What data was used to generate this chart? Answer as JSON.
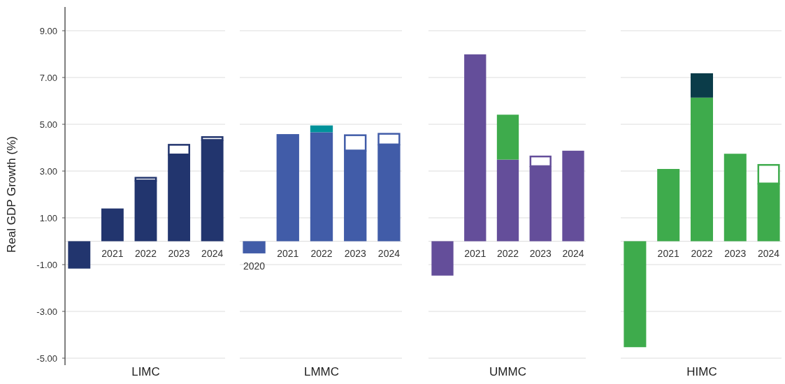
{
  "chart_data": [
    {
      "type": "bar",
      "stacked": true,
      "xlabel": "LIMC",
      "ylabel": "Real GDP Growth (%)",
      "categories": [
        null,
        "2021",
        "2022",
        "2023",
        "2024"
      ],
      "ylim": [
        -5,
        9
      ],
      "yticks": [
        {
          "value": 9,
          "label": "9.00"
        },
        {
          "value": 7,
          "label": "7.00"
        },
        {
          "value": 5,
          "label": "5.00"
        },
        {
          "value": 3,
          "label": "3.00"
        },
        {
          "value": 1,
          "label": "1.00"
        },
        {
          "value": -1,
          "label": "-1.00"
        },
        {
          "value": -3,
          "label": "-3.00"
        },
        {
          "value": -5,
          "label": "-5.00"
        }
      ],
      "grid": "y",
      "series": [
        {
          "color": "#22356e",
          "values": [
            -1.17,
            1.4,
            2.6,
            3.71,
            4.33
          ]
        },
        {
          "color": "#ffffff",
          "values": [
            null,
            null,
            0.15,
            0.45,
            0.16
          ]
        }
      ]
    },
    {
      "type": "bar",
      "stacked": true,
      "xlabel": "LMMC",
      "categories": [
        "2020",
        "2021",
        "2022",
        "2023",
        "2024"
      ],
      "ylim": [
        -5,
        9
      ],
      "yticks": [
        9,
        7,
        5,
        3,
        1,
        -1,
        -3,
        -5
      ],
      "grid": "y",
      "tick_labels": "x",
      "series": [
        {
          "color": "#415ca8",
          "values": [
            -0.52,
            4.58,
            4.66,
            3.88,
            4.14
          ]
        },
        {
          "color": "#00929a",
          "values": [
            null,
            null,
            0.29,
            null,
            null
          ]
        },
        {
          "color": "#ffffff",
          "values": [
            null,
            null,
            null,
            0.69,
            0.49
          ]
        }
      ]
    },
    {
      "type": "bar",
      "stacked": true,
      "xlabel": "UMMC",
      "categories": [
        null,
        "2021",
        "2022",
        "2023",
        "2024"
      ],
      "ylim": [
        -5,
        9
      ],
      "yticks": [
        9,
        7,
        5,
        3,
        1,
        -1,
        -3,
        -5
      ],
      "grid": "y",
      "tick_labels": "x",
      "series": [
        {
          "color": "#644e9a",
          "values": [
            -1.47,
            7.99,
            3.49,
            3.21,
            3.87
          ]
        },
        {
          "color": "#3eab4c",
          "values": [
            null,
            null,
            1.92,
            null,
            null
          ]
        },
        {
          "color": "#ffffff",
          "values": [
            null,
            null,
            null,
            0.45,
            null
          ]
        }
      ]
    },
    {
      "type": "bar",
      "stacked": true,
      "xlabel": "HIMC",
      "categories": [
        null,
        "2021",
        "2022",
        "2023",
        "2024"
      ],
      "ylim": [
        -5,
        9
      ],
      "yticks": [
        9,
        7,
        5,
        3,
        1,
        -1,
        -3,
        -5
      ],
      "grid": "y",
      "tick_labels": "x",
      "series": [
        {
          "color": "#3eab4c",
          "values": [
            -4.53,
            3.09,
            6.14,
            3.74,
            2.47
          ]
        },
        {
          "color": "#0b3c49",
          "values": [
            null,
            null,
            1.04,
            null,
            null
          ]
        },
        {
          "color": "#ffffff",
          "values": [
            null,
            null,
            null,
            null,
            0.83
          ]
        }
      ]
    }
  ]
}
